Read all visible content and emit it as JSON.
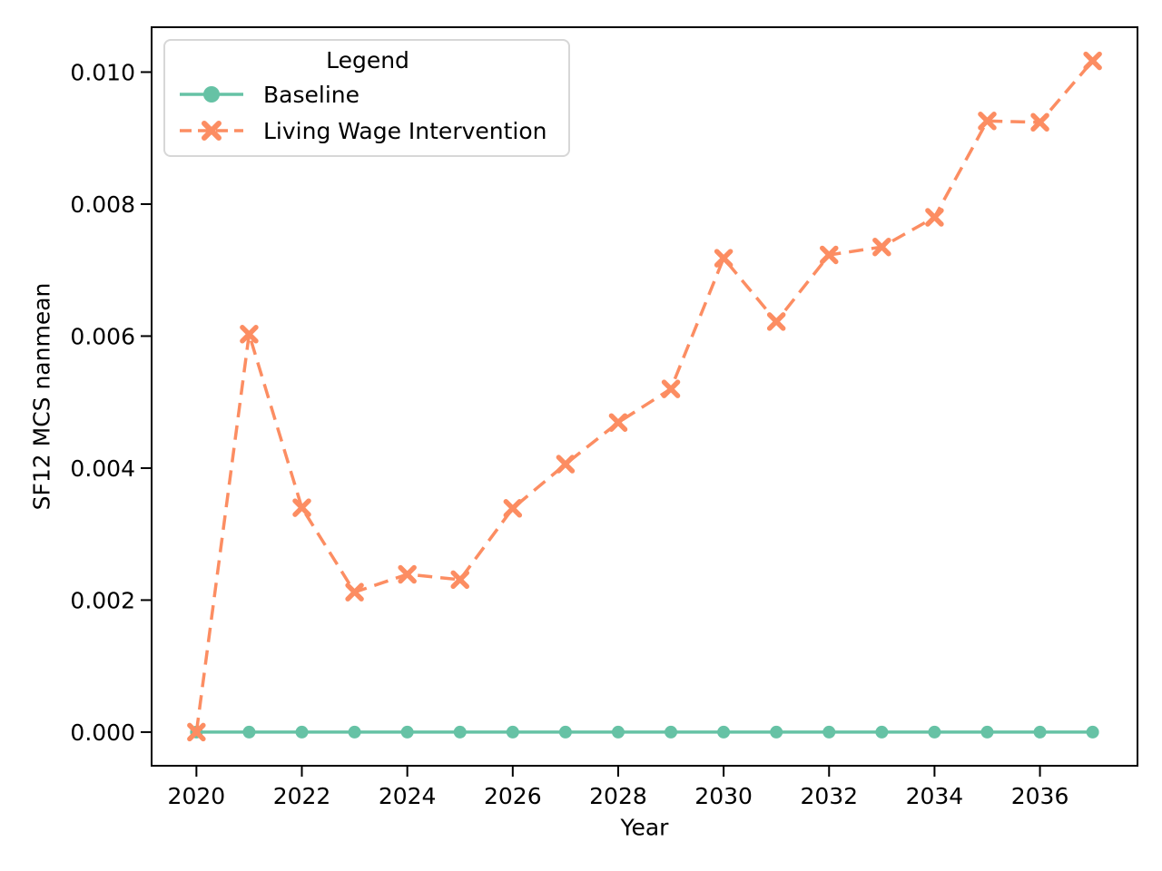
{
  "chart_data": {
    "type": "line",
    "title": "",
    "xlabel": "Year",
    "ylabel": "SF12 MCS nanmean",
    "x": [
      2020,
      2021,
      2022,
      2023,
      2024,
      2025,
      2026,
      2027,
      2028,
      2029,
      2030,
      2031,
      2032,
      2033,
      2034,
      2035,
      2036,
      2037
    ],
    "series": [
      {
        "name": "Baseline",
        "color": "#66c2a5",
        "marker": "circle",
        "line_style": "solid",
        "values": [
          0.0,
          0.0,
          0.0,
          0.0,
          0.0,
          0.0,
          0.0,
          0.0,
          0.0,
          0.0,
          0.0,
          0.0,
          0.0,
          0.0,
          0.0,
          0.0,
          0.0,
          0.0
        ]
      },
      {
        "name": "Living Wage Intervention",
        "color": "#fc8d62",
        "marker": "X",
        "line_style": "dashed",
        "values": [
          0.0,
          0.00603,
          0.0034,
          0.00212,
          0.00239,
          0.00231,
          0.00339,
          0.00406,
          0.00469,
          0.0052,
          0.00718,
          0.00622,
          0.00723,
          0.00735,
          0.0078,
          0.00926,
          0.00924,
          0.01017
        ]
      }
    ],
    "legend": {
      "title": "Legend",
      "position": "upper-left"
    },
    "x_ticks": [
      2020,
      2022,
      2024,
      2026,
      2028,
      2030,
      2032,
      2034,
      2036
    ],
    "x_tick_labels": [
      "2020",
      "2022",
      "2024",
      "2026",
      "2028",
      "2030",
      "2032",
      "2034",
      "2036"
    ],
    "y_ticks": [
      0.0,
      0.002,
      0.004,
      0.006,
      0.008,
      0.01
    ],
    "y_tick_labels": [
      "0.000",
      "0.002",
      "0.004",
      "0.006",
      "0.008",
      "0.010"
    ],
    "xlim": [
      2019.15,
      2037.85
    ],
    "ylim": [
      -0.00051,
      0.01068
    ],
    "grid": false,
    "axis_color": "#000000"
  }
}
